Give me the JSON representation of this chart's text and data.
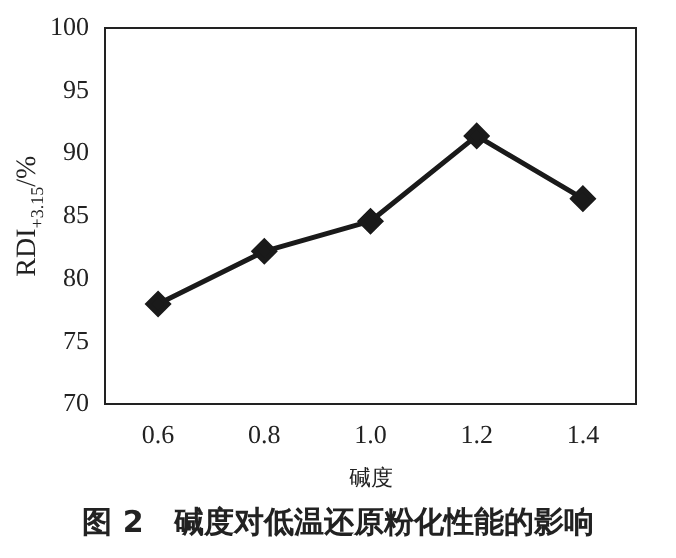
{
  "chart_data": {
    "type": "line",
    "xlabel": "碱度",
    "ylabel": "RDI$_{+3.15}$/%",
    "x": [
      0.6,
      0.8,
      1.0,
      1.2,
      1.4
    ],
    "series": [
      {
        "color": "#1a1a1a",
        "values": [
          78.0,
          82.2,
          84.6,
          91.4,
          86.4
        ]
      }
    ],
    "xlim": [
      0.5,
      1.5
    ],
    "xticks": [
      {
        "value": 0.6,
        "label": "0.6"
      },
      {
        "value": 0.8,
        "label": "0.8"
      },
      {
        "value": 1.0,
        "label": "1.0"
      },
      {
        "value": 1.2,
        "label": "1.2"
      },
      {
        "value": 1.4,
        "label": "1.4"
      }
    ],
    "ylim": [
      70,
      100
    ],
    "yticks": [
      70,
      75,
      80,
      85,
      90,
      95,
      100
    ],
    "marker": "diamond",
    "line_style": "solid",
    "grid": false,
    "legend": false,
    "annotations": [
      "图 2　碱度对低温还原粉化性能的影响"
    ]
  }
}
